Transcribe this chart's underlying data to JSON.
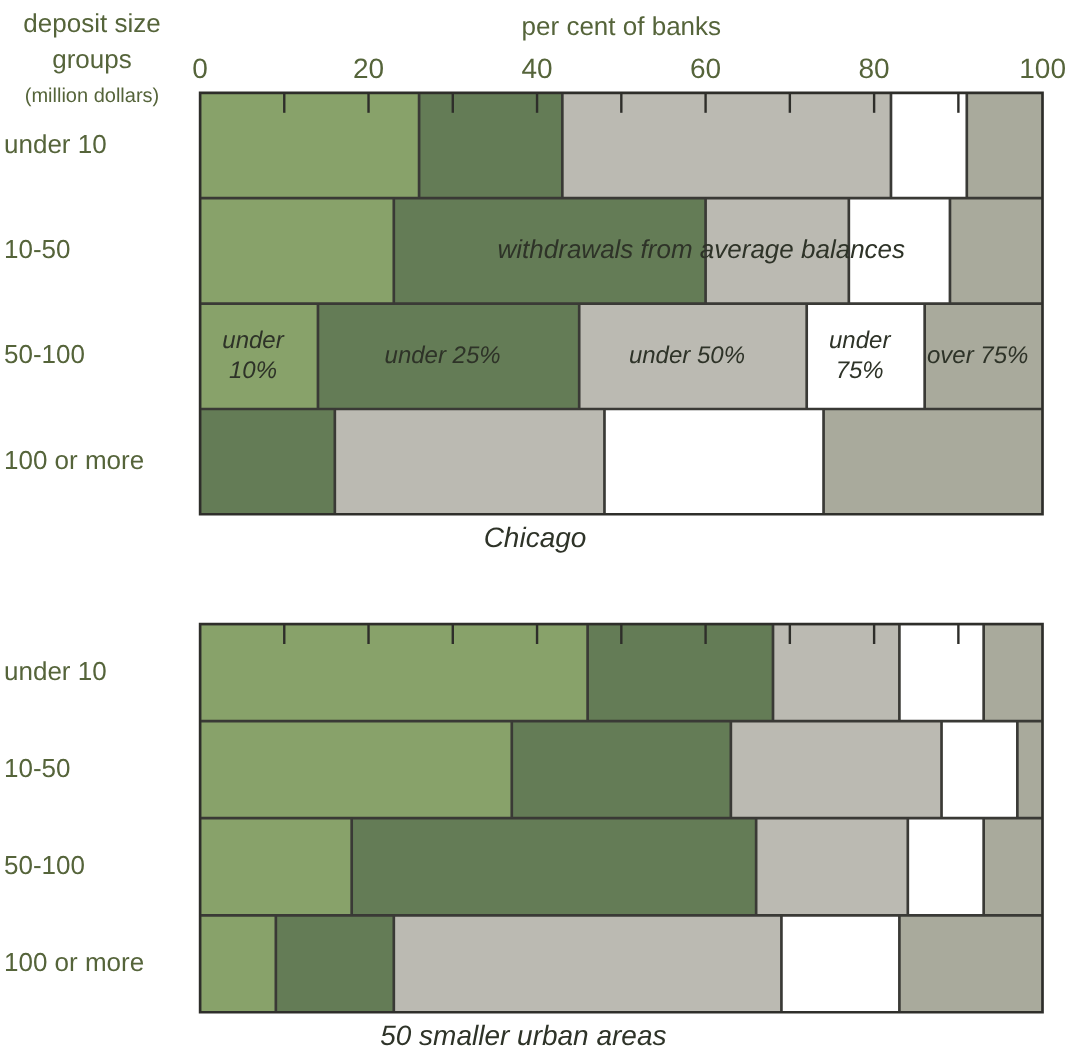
{
  "chart_data": [
    {
      "type": "bar",
      "orientation": "horizontal",
      "stacked": true,
      "title": "Chicago",
      "xlabel": "per cent of banks",
      "ylabel": "deposit size groups (million dollars)",
      "annotations": [
        "withdrawals from average balances"
      ],
      "categories": [
        "under 10",
        "10-50",
        "50-100",
        "100 or more"
      ],
      "xlim": [
        0,
        100
      ],
      "xticks": [
        0,
        {
          "value": 10,
          "label": null
        },
        20,
        {
          "value": 30,
          "label": null
        },
        40,
        {
          "value": 50,
          "label": null
        },
        60,
        {
          "value": 70,
          "label": null
        },
        80,
        {
          "value": 90,
          "label": null
        },
        100
      ],
      "series": [
        {
          "name": "under 10%",
          "color": "#88a26a",
          "values": [
            26,
            23,
            14,
            0
          ]
        },
        {
          "name": "under 25%",
          "color": "#647c56",
          "values": [
            17,
            37,
            31,
            16
          ]
        },
        {
          "name": "under 50%",
          "color": "#bbbab2",
          "values": [
            39,
            17,
            27,
            32
          ]
        },
        {
          "name": "under 75%",
          "color": "#ffffff",
          "values": [
            9,
            12,
            14,
            26
          ]
        },
        {
          "name": "over 75%",
          "color": "#a9aa9c",
          "values": [
            9,
            11,
            14,
            26
          ]
        }
      ],
      "grid": false,
      "legend": false
    },
    {
      "type": "bar",
      "orientation": "horizontal",
      "stacked": true,
      "title": "50 smaller urban areas",
      "categories": [
        "under 10",
        "10-50",
        "50-100",
        "100 or more"
      ],
      "xlim": [
        0,
        100
      ],
      "xticks": [
        0,
        {
          "value": 10,
          "label": null
        },
        20,
        {
          "value": 30,
          "label": null
        },
        40,
        {
          "value": 50,
          "label": null
        },
        60,
        {
          "value": 70,
          "label": null
        },
        80,
        {
          "value": 90,
          "label": null
        },
        100
      ],
      "tick_labels": "y",
      "series": [
        {
          "color": "#88a26a",
          "values": [
            46,
            37,
            18,
            9
          ]
        },
        {
          "color": "#647c56",
          "values": [
            22,
            26,
            48,
            14
          ]
        },
        {
          "color": "#bbbab2",
          "values": [
            15,
            25,
            18,
            46
          ]
        },
        {
          "color": "#ffffff",
          "values": [
            10,
            9,
            9,
            14
          ]
        },
        {
          "color": "#a9aa9c",
          "values": [
            7,
            3,
            7,
            17
          ]
        }
      ],
      "grid": false,
      "legend": false
    }
  ]
}
